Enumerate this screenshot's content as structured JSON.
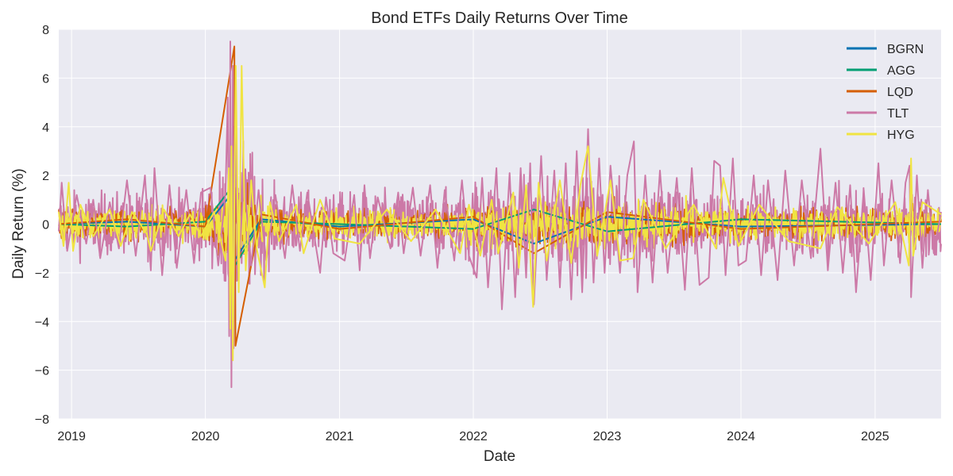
{
  "chart_data": {
    "type": "line",
    "title": "Bond ETFs Daily Returns Over Time",
    "xlabel": "Date",
    "ylabel": "Daily Return (%)",
    "xlim": [
      "2018-11-27",
      "2025-06-30"
    ],
    "ylim": [
      -8,
      8
    ],
    "yticks": [
      -8,
      -6,
      -4,
      -2,
      0,
      2,
      4,
      6,
      8
    ],
    "ytick_labels": [
      "−8",
      "−6",
      "−4",
      "−2",
      "0",
      "2",
      "4",
      "6",
      "8"
    ],
    "xticks": [
      "2019-01-01",
      "2020-01-01",
      "2021-01-01",
      "2022-01-01",
      "2023-01-01",
      "2024-01-01",
      "2025-01-01"
    ],
    "xtick_labels": [
      "2019",
      "2020",
      "2021",
      "2022",
      "2023",
      "2024",
      "2025"
    ],
    "grid": true,
    "background": "#eaeaf2",
    "legend_position": "top-right",
    "series": [
      {
        "name": "BGRN",
        "color": "#0072b2",
        "points": [
          [
            "2018-11-27",
            0.0
          ],
          [
            "2019-06-01",
            0.1
          ],
          [
            "2020-01-01",
            -0.1
          ],
          [
            "2020-03-10",
            1.2
          ],
          [
            "2020-03-20",
            -1.5
          ],
          [
            "2020-06-01",
            0.2
          ],
          [
            "2021-01-01",
            -0.1
          ],
          [
            "2022-01-01",
            0.2
          ],
          [
            "2022-06-15",
            -0.8
          ],
          [
            "2023-01-01",
            0.3
          ],
          [
            "2024-01-01",
            -0.1
          ],
          [
            "2025-06-30",
            0.0
          ]
        ]
      },
      {
        "name": "AGG",
        "color": "#009e73",
        "points": [
          [
            "2018-11-27",
            0.0
          ],
          [
            "2019-06-01",
            -0.1
          ],
          [
            "2020-01-01",
            0.1
          ],
          [
            "2020-03-12",
            1.5
          ],
          [
            "2020-03-18",
            -1.8
          ],
          [
            "2020-06-01",
            0.1
          ],
          [
            "2021-01-01",
            0.0
          ],
          [
            "2022-01-01",
            -0.2
          ],
          [
            "2022-06-15",
            0.6
          ],
          [
            "2023-01-01",
            -0.3
          ],
          [
            "2024-01-01",
            0.2
          ],
          [
            "2025-06-30",
            0.0
          ]
        ]
      },
      {
        "name": "LQD",
        "color": "#d55e00",
        "points": [
          [
            "2018-11-27",
            0.0
          ],
          [
            "2019-06-01",
            0.2
          ],
          [
            "2020-01-01",
            -0.1
          ],
          [
            "2020-03-20",
            7.3
          ],
          [
            "2020-03-23",
            -5.0
          ],
          [
            "2020-06-01",
            0.4
          ],
          [
            "2021-01-01",
            -0.2
          ],
          [
            "2022-01-01",
            0.3
          ],
          [
            "2022-06-15",
            -1.2
          ],
          [
            "2023-01-01",
            0.5
          ],
          [
            "2024-01-01",
            -0.2
          ],
          [
            "2025-06-30",
            0.1
          ]
        ]
      },
      {
        "name": "TLT",
        "color": "#cc79a7",
        "points": [
          [
            "2018-11-27",
            -0.3
          ],
          [
            "2018-12-05",
            1.7
          ],
          [
            "2018-12-20",
            -1.1
          ],
          [
            "2019-01-15",
            1.2
          ],
          [
            "2019-02-10",
            -0.8
          ],
          [
            "2019-03-01",
            1.0
          ],
          [
            "2019-03-20",
            -1.4
          ],
          [
            "2019-04-15",
            0.9
          ],
          [
            "2019-05-10",
            -1.0
          ],
          [
            "2019-06-01",
            1.8
          ],
          [
            "2019-06-25",
            -1.3
          ],
          [
            "2019-07-20",
            2.0
          ],
          [
            "2019-08-05",
            -1.9
          ],
          [
            "2019-08-15",
            2.3
          ],
          [
            "2019-09-05",
            -2.1
          ],
          [
            "2019-09-25",
            1.6
          ],
          [
            "2019-10-15",
            -1.8
          ],
          [
            "2019-11-10",
            1.4
          ],
          [
            "2019-12-01",
            -1.6
          ],
          [
            "2019-12-20",
            1.3
          ],
          [
            "2020-01-15",
            1.5
          ],
          [
            "2020-02-05",
            -1.7
          ],
          [
            "2020-02-25",
            1.3
          ],
          [
            "2020-03-02",
            5.2
          ],
          [
            "2020-03-06",
            -4.6
          ],
          [
            "2020-03-09",
            7.5
          ],
          [
            "2020-03-12",
            -6.7
          ],
          [
            "2020-03-16",
            6.5
          ],
          [
            "2020-03-18",
            -5.1
          ],
          [
            "2020-03-23",
            4.6
          ],
          [
            "2020-03-30",
            -2.3
          ],
          [
            "2020-04-15",
            1.9
          ],
          [
            "2020-05-05",
            -1.7
          ],
          [
            "2020-05-25",
            1.4
          ],
          [
            "2020-06-15",
            -1.5
          ],
          [
            "2020-07-10",
            1.2
          ],
          [
            "2020-08-05",
            -1.4
          ],
          [
            "2020-08-25",
            1.6
          ],
          [
            "2020-09-15",
            -1.1
          ],
          [
            "2020-10-05",
            1.3
          ],
          [
            "2020-11-09",
            -2.0
          ],
          [
            "2020-11-25",
            1.1
          ],
          [
            "2020-12-15",
            -1.2
          ],
          [
            "2021-01-15",
            -1.5
          ],
          [
            "2021-02-10",
            1.2
          ],
          [
            "2021-02-25",
            -1.9
          ],
          [
            "2021-03-10",
            1.6
          ],
          [
            "2021-03-25",
            -1.4
          ],
          [
            "2021-04-15",
            1.1
          ],
          [
            "2021-05-20",
            -1.0
          ],
          [
            "2021-06-10",
            1.3
          ],
          [
            "2021-06-25",
            -1.2
          ],
          [
            "2021-07-20",
            1.5
          ],
          [
            "2021-08-10",
            -1.3
          ],
          [
            "2021-09-05",
            1.6
          ],
          [
            "2021-09-25",
            -1.8
          ],
          [
            "2021-10-15",
            1.4
          ],
          [
            "2021-11-10",
            -1.5
          ],
          [
            "2021-12-01",
            1.8
          ],
          [
            "2021-12-20",
            -1.3
          ],
          [
            "2022-01-10",
            -2.2
          ],
          [
            "2022-01-25",
            1.9
          ],
          [
            "2022-02-10",
            -2.6
          ],
          [
            "2022-03-05",
            2.3
          ],
          [
            "2022-03-20",
            -3.5
          ],
          [
            "2022-04-10",
            2.1
          ],
          [
            "2022-04-25",
            -3.0
          ],
          [
            "2022-05-10",
            2.3
          ],
          [
            "2022-05-25",
            -2.2
          ],
          [
            "2022-06-05",
            2.5
          ],
          [
            "2022-06-15",
            -3.3
          ],
          [
            "2022-07-05",
            2.8
          ],
          [
            "2022-07-20",
            -2.3
          ],
          [
            "2022-08-10",
            2.2
          ],
          [
            "2022-08-25",
            -2.6
          ],
          [
            "2022-09-10",
            2.5
          ],
          [
            "2022-09-25",
            -3.1
          ],
          [
            "2022-10-10",
            3.0
          ],
          [
            "2022-10-25",
            -2.8
          ],
          [
            "2022-11-10",
            3.9
          ],
          [
            "2022-11-25",
            -2.4
          ],
          [
            "2022-12-10",
            2.7
          ],
          [
            "2022-12-25",
            -2.0
          ],
          [
            "2023-01-10",
            2.4
          ],
          [
            "2023-02-05",
            -2.0
          ],
          [
            "2023-02-25",
            2.0
          ],
          [
            "2023-03-15",
            3.4
          ],
          [
            "2023-03-25",
            -2.8
          ],
          [
            "2023-04-15",
            2.0
          ],
          [
            "2023-05-05",
            -2.4
          ],
          [
            "2023-05-25",
            2.2
          ],
          [
            "2023-06-15",
            -2.0
          ],
          [
            "2023-07-10",
            1.9
          ],
          [
            "2023-08-01",
            -2.7
          ],
          [
            "2023-08-20",
            2.3
          ],
          [
            "2023-09-10",
            -2.5
          ],
          [
            "2023-10-05",
            -2.2
          ],
          [
            "2023-10-20",
            2.6
          ],
          [
            "2023-11-05",
            2.4
          ],
          [
            "2023-11-20",
            -2.1
          ],
          [
            "2023-12-10",
            2.7
          ],
          [
            "2023-12-25",
            -1.7
          ],
          [
            "2024-01-15",
            -1.5
          ],
          [
            "2024-02-05",
            2.0
          ],
          [
            "2024-02-25",
            -2.1
          ],
          [
            "2024-03-15",
            1.8
          ],
          [
            "2024-04-10",
            -2.3
          ],
          [
            "2024-05-01",
            2.2
          ],
          [
            "2024-05-25",
            -1.7
          ],
          [
            "2024-06-15",
            1.8
          ],
          [
            "2024-07-10",
            -1.4
          ],
          [
            "2024-08-05",
            3.1
          ],
          [
            "2024-08-25",
            -1.9
          ],
          [
            "2024-09-15",
            1.7
          ],
          [
            "2024-10-05",
            -2.0
          ],
          [
            "2024-10-25",
            1.6
          ],
          [
            "2024-11-10",
            -2.8
          ],
          [
            "2024-12-01",
            1.4
          ],
          [
            "2024-12-20",
            -2.3
          ],
          [
            "2025-01-10",
            2.5
          ],
          [
            "2025-01-25",
            -1.7
          ],
          [
            "2025-02-15",
            1.8
          ],
          [
            "2025-03-10",
            -1.6
          ],
          [
            "2025-03-25",
            1.7
          ],
          [
            "2025-04-05",
            2.4
          ],
          [
            "2025-04-09",
            -3.0
          ],
          [
            "2025-04-25",
            2.0
          ],
          [
            "2025-05-10",
            -1.8
          ],
          [
            "2025-05-25",
            1.4
          ],
          [
            "2025-06-10",
            -1.2
          ],
          [
            "2025-06-30",
            0.5
          ]
        ]
      },
      {
        "name": "HYG",
        "color": "#f0e442",
        "points": [
          [
            "2018-11-27",
            0.5
          ],
          [
            "2018-12-10",
            -0.9
          ],
          [
            "2018-12-24",
            1.7
          ],
          [
            "2019-01-05",
            -1.1
          ],
          [
            "2019-01-25",
            0.8
          ],
          [
            "2019-03-01",
            -0.5
          ],
          [
            "2019-04-15",
            0.6
          ],
          [
            "2019-05-15",
            -0.9
          ],
          [
            "2019-06-15",
            0.5
          ],
          [
            "2019-07-25",
            -0.4
          ],
          [
            "2019-08-05",
            -1.1
          ],
          [
            "2019-09-10",
            0.6
          ],
          [
            "2019-10-20",
            -0.5
          ],
          [
            "2019-11-20",
            0.4
          ],
          [
            "2019-12-20",
            -0.5
          ],
          [
            "2020-01-25",
            0.5
          ],
          [
            "2020-02-25",
            -1.5
          ],
          [
            "2020-03-05",
            2.3
          ],
          [
            "2020-03-09",
            -4.3
          ],
          [
            "2020-03-12",
            3.2
          ],
          [
            "2020-03-16",
            -5.6
          ],
          [
            "2020-03-20",
            1.0
          ],
          [
            "2020-03-24",
            6.5
          ],
          [
            "2020-04-01",
            -2.8
          ],
          [
            "2020-04-09",
            6.5
          ],
          [
            "2020-04-20",
            -1.9
          ],
          [
            "2020-05-05",
            1.8
          ],
          [
            "2020-05-20",
            -1.0
          ],
          [
            "2020-06-11",
            -2.6
          ],
          [
            "2020-06-25",
            0.9
          ],
          [
            "2020-07-20",
            -0.7
          ],
          [
            "2020-09-05",
            0.8
          ],
          [
            "2020-09-25",
            -1.2
          ],
          [
            "2020-11-09",
            1.0
          ],
          [
            "2020-12-20",
            -0.6
          ],
          [
            "2021-02-25",
            -0.8
          ],
          [
            "2021-05-10",
            0.6
          ],
          [
            "2021-07-15",
            -0.7
          ],
          [
            "2021-09-20",
            0.6
          ],
          [
            "2021-11-26",
            -1.2
          ],
          [
            "2021-12-20",
            0.8
          ],
          [
            "2022-01-20",
            -1.3
          ],
          [
            "2022-02-20",
            1.0
          ],
          [
            "2022-03-10",
            -1.2
          ],
          [
            "2022-04-20",
            1.3
          ],
          [
            "2022-05-05",
            -1.8
          ],
          [
            "2022-05-25",
            1.6
          ],
          [
            "2022-06-13",
            -3.4
          ],
          [
            "2022-06-28",
            1.7
          ],
          [
            "2022-07-20",
            -1.5
          ],
          [
            "2022-08-25",
            1.8
          ],
          [
            "2022-09-25",
            -1.6
          ],
          [
            "2022-10-20",
            1.6
          ],
          [
            "2022-11-10",
            3.2
          ],
          [
            "2022-12-05",
            -1.3
          ],
          [
            "2023-01-10",
            1.8
          ],
          [
            "2023-02-05",
            -1.5
          ],
          [
            "2023-03-13",
            -1.4
          ],
          [
            "2023-04-10",
            1.0
          ],
          [
            "2023-06-10",
            -1.0
          ],
          [
            "2023-08-25",
            0.8
          ],
          [
            "2023-10-25",
            -1.0
          ],
          [
            "2023-11-14",
            1.9
          ],
          [
            "2023-12-25",
            -0.9
          ],
          [
            "2024-02-20",
            0.8
          ],
          [
            "2024-05-10",
            -0.7
          ],
          [
            "2024-08-05",
            -1.0
          ],
          [
            "2024-09-20",
            0.7
          ],
          [
            "2024-12-15",
            -0.8
          ],
          [
            "2025-02-25",
            0.9
          ],
          [
            "2025-04-03",
            -1.7
          ],
          [
            "2025-04-09",
            2.7
          ],
          [
            "2025-04-15",
            -1.3
          ],
          [
            "2025-05-10",
            0.9
          ],
          [
            "2025-06-30",
            0.4
          ]
        ]
      }
    ]
  }
}
